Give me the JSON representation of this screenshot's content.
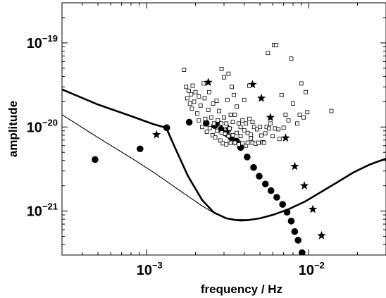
{
  "chart_data": {
    "type": "scatter",
    "title": "",
    "xlabel": "frequency / Hz",
    "ylabel": "amplitude",
    "xscale": "log",
    "yscale": "log",
    "xlim": [
      0.0003,
      0.03
    ],
    "ylim": [
      3e-22,
      3e-19
    ],
    "grid": false,
    "legend": "none",
    "x_ticks": [
      {
        "value": 0.001,
        "base": "10",
        "exp": "−3"
      },
      {
        "value": 0.01,
        "base": "10",
        "exp": "−2"
      }
    ],
    "y_ticks": [
      {
        "value": 1e-21,
        "base": "10",
        "exp": "−21"
      },
      {
        "value": 1e-20,
        "base": "10",
        "exp": "−20"
      },
      {
        "value": 1e-19,
        "base": "10",
        "exp": "−19"
      }
    ],
    "series": [
      {
        "kind": "line",
        "marker": "none",
        "style": "thick",
        "x": [
          0.0003,
          0.0005,
          0.0008,
          0.0011,
          0.00132,
          0.0015,
          0.0018,
          0.0022,
          0.0026,
          0.0031,
          0.0036,
          0.0042,
          0.005,
          0.006,
          0.0075,
          0.0095,
          0.012,
          0.015,
          0.019,
          0.024,
          0.03
        ],
        "y": [
          2.8e-20,
          1.85e-20,
          1.35e-20,
          1.08e-20,
          9.8e-21,
          5.6e-21,
          2.6e-21,
          1.35e-21,
          9.6e-22,
          8.2e-22,
          7.8e-22,
          7.8e-22,
          8.2e-22,
          9e-22,
          1.05e-21,
          1.3e-21,
          1.7e-21,
          2.2e-21,
          2.9e-21,
          3.6e-21,
          4.2e-21
        ]
      },
      {
        "kind": "line",
        "marker": "none",
        "style": "thin",
        "x": [
          0.0003,
          0.0005,
          0.0008,
          0.0011,
          0.0014,
          0.0018,
          0.0022,
          0.0026,
          0.003,
          0.0034,
          0.0038,
          0.0042,
          0.005,
          0.006,
          0.0075,
          0.0095,
          0.012,
          0.015,
          0.019,
          0.024,
          0.03
        ],
        "y": [
          1.4e-20,
          7.5e-21,
          4.3e-21,
          2.9e-21,
          2.1e-21,
          1.5e-21,
          1.15e-21,
          9.5e-22,
          8.4e-22,
          7.8e-22,
          7.6e-22,
          7.7e-22,
          8.2e-22,
          9e-22,
          1.05e-21,
          1.3e-21,
          1.7e-21,
          2.2e-21,
          2.9e-21,
          3.6e-21,
          4.2e-21
        ]
      },
      {
        "kind": "scatter",
        "marker": "circle",
        "x": [
          0.00048,
          0.00091,
          0.00133,
          0.00183,
          0.00233,
          0.00263,
          0.00288,
          0.0031,
          0.00332,
          0.00358,
          0.0038,
          0.00417,
          0.00457,
          0.00495,
          0.0054,
          0.00585,
          0.00635,
          0.0069,
          0.00735,
          0.0078,
          0.0082,
          0.0086,
          0.0091
        ],
        "y": [
          4.1e-21,
          5.5e-21,
          9.8e-21,
          1.14e-20,
          1.11e-20,
          1.04e-20,
          9.4e-21,
          8.4e-21,
          7.5e-21,
          6.8e-21,
          5.7e-21,
          4.4e-21,
          3.3e-21,
          2.6e-21,
          2.1e-21,
          1.75e-21,
          1.46e-21,
          1.2e-21,
          9.7e-22,
          7.6e-22,
          5.7e-22,
          4.5e-22,
          3.2e-22
        ]
      },
      {
        "kind": "scatter",
        "marker": "star",
        "x": [
          0.00115,
          0.0024,
          0.00282,
          0.0032,
          0.0036,
          0.0045,
          0.0051,
          0.0058,
          0.0072,
          0.0082,
          0.0094,
          0.0106,
          0.012
        ],
        "y": [
          8.1e-21,
          3.4e-20,
          1.1e-20,
          9.5e-21,
          6.6e-21,
          3.2e-20,
          2.2e-20,
          1.3e-20,
          7.4e-21,
          3.4e-21,
          2e-21,
          1.05e-21,
          5.1e-22
        ]
      },
      {
        "kind": "scatter",
        "marker": "square",
        "x": [
          0.0017,
          0.00175,
          0.00178,
          0.00182,
          0.00185,
          0.00188,
          0.0019,
          0.00192,
          0.00196,
          0.002,
          0.00205,
          0.0021,
          0.0021,
          0.00215,
          0.0022,
          0.00225,
          0.00228,
          0.0023,
          0.00235,
          0.0024,
          0.00243,
          0.00245,
          0.0025,
          0.00255,
          0.00257,
          0.0026,
          0.00265,
          0.0027,
          0.00272,
          0.00275,
          0.0028,
          0.00285,
          0.00288,
          0.0029,
          0.0029,
          0.00295,
          0.003,
          0.003,
          0.00305,
          0.0031,
          0.0031,
          0.00315,
          0.0032,
          0.0032,
          0.00325,
          0.0033,
          0.0033,
          0.00335,
          0.0034,
          0.0034,
          0.00345,
          0.0035,
          0.0035,
          0.0036,
          0.0036,
          0.0037,
          0.0037,
          0.0038,
          0.0038,
          0.0039,
          0.0039,
          0.004,
          0.004,
          0.0041,
          0.0041,
          0.0042,
          0.0042,
          0.0043,
          0.0043,
          0.0044,
          0.0044,
          0.0045,
          0.0045,
          0.0046,
          0.0047,
          0.0048,
          0.0049,
          0.005,
          0.0051,
          0.0052,
          0.0053,
          0.0054,
          0.0055,
          0.0056,
          0.0057,
          0.0058,
          0.006,
          0.0061,
          0.0062,
          0.0063,
          0.0065,
          0.0066,
          0.0068,
          0.007,
          0.0072,
          0.0075,
          0.0078,
          0.008,
          0.0085,
          0.0088,
          0.009,
          0.0093,
          0.0096,
          0.0098,
          0.0138
        ],
        "y": [
          4.8e-20,
          3e-20,
          2.2e-20,
          2.7e-20,
          1.9e-20,
          2.45e-20,
          1.65e-20,
          3.1e-20,
          2e-20,
          2.6e-20,
          1.45e-20,
          2.3e-20,
          1.2e-20,
          1.8e-20,
          1e-20,
          3.3e-20,
          2.2e-20,
          1.25e-20,
          8.8e-21,
          1.6e-20,
          2.6e-20,
          9.7e-21,
          1.3e-20,
          8e-21,
          1.9e-20,
          1.1e-20,
          7.5e-21,
          2.05e-20,
          9e-21,
          1.2e-20,
          1.55e-20,
          6.9e-21,
          1.1e-20,
          4.9e-20,
          8.6e-21,
          6.4e-21,
          1.3e-20,
          3.9e-20,
          8.3e-21,
          6.2e-21,
          1.1e-20,
          2.1e-20,
          7.8e-21,
          4.3e-20,
          9.6e-21,
          6.5e-21,
          1.4e-20,
          3e-20,
          8e-21,
          1.15e-20,
          2.4e-20,
          6.5e-21,
          1.4e-20,
          8.5e-21,
          1.75e-20,
          6.2e-21,
          1.1e-20,
          7.8e-21,
          1e-20,
          6.4e-21,
          1.2e-20,
          9.1e-21,
          2.1e-20,
          6e-21,
          1.1e-20,
          8.5e-21,
          6.5e-21,
          1.25e-20,
          3.1e-20,
          8.1e-21,
          7.3e-21,
          1.15e-20,
          6.5e-21,
          1e-20,
          6.3e-21,
          9.4e-21,
          6.5e-21,
          1e-20,
          7.9e-21,
          6.6e-21,
          6.5e-21,
          8.4e-21,
          1e-20,
          7.6e-20,
          9.6e-21,
          1.1e-20,
          7.8e-21,
          9.4e-20,
          9.6e-21,
          9.4e-20,
          9.4e-21,
          7.2e-21,
          2.4e-20,
          9.8e-21,
          1.4e-20,
          1.2e-20,
          6.5e-20,
          1.9e-20,
          1.1e-20,
          1.4e-20,
          3.3e-20,
          1.3e-20,
          2.6e-20,
          1.5e-20,
          1.55e-20
        ]
      }
    ]
  }
}
